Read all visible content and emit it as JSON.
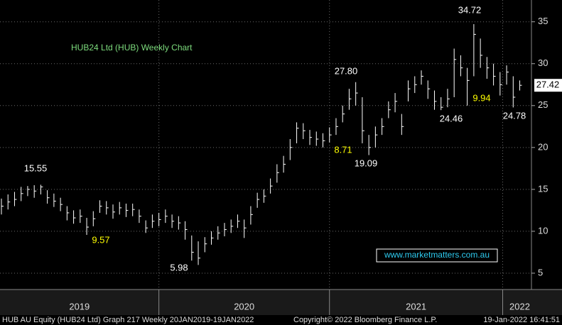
{
  "chart_data": {
    "type": "ohlc",
    "title": "HUB24 Ltd (HUB) Weekly Chart",
    "high": [
      13.9,
      14.4,
      14.7,
      15.3,
      15.4,
      15.5,
      15.55,
      14.9,
      14.5,
      14.0,
      13.0,
      12.5,
      12.6,
      11.6,
      12.4,
      13.7,
      13.6,
      13.2,
      13.5,
      13.3,
      13.3,
      12.6,
      11.3,
      12.0,
      12.2,
      12.6,
      12.0,
      11.8,
      11.2,
      9.5,
      8.8,
      9.3,
      10.0,
      10.6,
      11.0,
      11.4,
      12.0,
      11.4,
      13.0,
      14.6,
      15.0,
      16.3,
      18.0,
      19.0,
      21.0,
      23.0,
      22.9,
      22.1,
      21.9,
      21.7,
      22.4,
      23.5,
      25.0,
      27.0,
      27.8,
      26.0,
      21.5,
      22.5,
      23.5,
      25.5,
      26.5,
      24.0,
      28.0,
      28.5,
      29.2,
      28.0,
      26.8,
      26.0,
      27.0,
      31.8,
      31.0,
      29.5,
      34.72,
      33.0,
      30.8,
      30.0,
      29.0,
      29.8,
      28.5,
      28.0
    ],
    "low": [
      12.0,
      12.6,
      13.0,
      13.6,
      14.2,
      14.0,
      14.4,
      13.3,
      12.9,
      12.4,
      11.3,
      10.9,
      11.0,
      9.57,
      10.6,
      12.2,
      12.0,
      11.5,
      12.0,
      11.7,
      11.8,
      11.0,
      9.8,
      10.4,
      10.6,
      11.0,
      10.4,
      10.2,
      9.0,
      6.5,
      5.98,
      7.5,
      8.4,
      9.0,
      9.4,
      9.8,
      10.4,
      9.2,
      10.8,
      12.8,
      13.4,
      14.5,
      15.8,
      17.0,
      18.5,
      20.5,
      21.0,
      20.3,
      20.2,
      20.0,
      20.6,
      21.5,
      23.0,
      24.5,
      25.0,
      20.5,
      19.09,
      20.0,
      21.5,
      23.5,
      24.2,
      21.5,
      25.5,
      26.5,
      27.5,
      25.8,
      24.5,
      24.46,
      24.8,
      26.0,
      28.5,
      25.0,
      28.5,
      29.5,
      28.2,
      27.4,
      26.2,
      27.5,
      24.78,
      26.8
    ],
    "close": [
      13.0,
      13.5,
      13.8,
      14.5,
      15.0,
      14.8,
      15.3,
      14.0,
      13.6,
      13.2,
      12.2,
      11.6,
      11.8,
      10.5,
      11.5,
      13.0,
      12.8,
      12.3,
      12.8,
      12.5,
      12.6,
      11.8,
      10.4,
      11.2,
      11.4,
      11.8,
      11.2,
      11.0,
      10.2,
      7.5,
      6.8,
      8.5,
      9.2,
      9.8,
      10.2,
      10.6,
      11.2,
      10.4,
      12.0,
      13.8,
      14.2,
      15.4,
      17.0,
      18.0,
      20.0,
      22.3,
      22.0,
      21.2,
      21.0,
      20.8,
      21.5,
      22.5,
      24.0,
      25.8,
      26.5,
      22.0,
      20.0,
      21.5,
      22.5,
      24.5,
      25.5,
      22.5,
      27.0,
      27.5,
      28.5,
      27.0,
      25.5,
      24.8,
      25.8,
      30.5,
      29.5,
      28.0,
      33.5,
      31.0,
      29.5,
      28.5,
      27.5,
      29.0,
      26.0,
      27.42
    ],
    "color": "#ffffff",
    "xlim": [
      0,
      81
    ],
    "xticks": [
      24,
      50,
      76.4
    ],
    "x_labels": [
      "2019",
      "2020",
      "2021",
      "2022"
    ],
    "ylim": [
      3.05,
      37.6
    ],
    "yticks": [
      5,
      10,
      15,
      20,
      25,
      30,
      35
    ],
    "grid": true,
    "annotations": [
      "15.55",
      "9.57",
      "5.98",
      "8.71",
      "27.80",
      "19.09",
      "24.46",
      "9.94",
      "34.72",
      "24.78"
    ],
    "website": "www.marketmatters.com.au",
    "footer": [
      "HUB AU Equity (HUB24 Ltd) Graph 217  Weekly 20JAN2019-19JAN2022",
      "Copyright© 2022 Bloomberg Finance L.P.",
      "19-Jan-2022 16:41:51"
    ]
  }
}
